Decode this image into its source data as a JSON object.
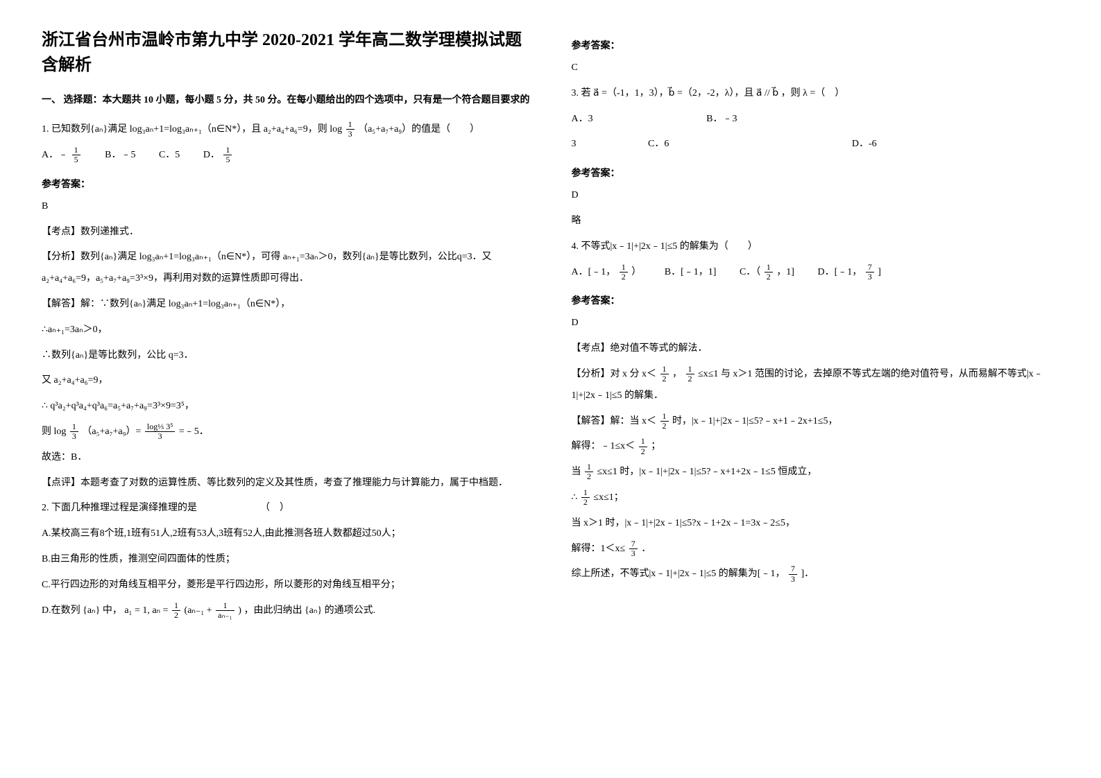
{
  "title": "浙江省台州市温岭市第九中学 2020-2021 学年高二数学理模拟试题含解析",
  "section1": "一、 选择题：本大题共 10 小题，每小题 5 分，共 50 分。在每小题给出的四个选项中，只有是一个符合题目要求的",
  "q1": {
    "stem_a": "1. 已知数列{aₙ}满足 log₃aₙ+1=log₃aₙ₊₁（n∈N*），且 a₂+a₄+a₆=9，则 log ",
    "stem_b": "（a₅+a₇+a₉）的值是（　　）",
    "optA_pre": "A．﹣",
    "optB": "B．﹣5",
    "optC": "C．5",
    "optD_pre": "D．",
    "ans_label": "参考答案：",
    "ans": "B",
    "p1": "【考点】数列递推式．",
    "p2": "【分析】数列{aₙ}满足 log₃aₙ+1=log₃aₙ₊₁（n∈N*），可得 aₙ₊₁=3aₙ＞0，数列{aₙ}是等比数列，公比q=3．又 a₂+a₄+a₆=9，a₅+a₇+a₉=3³×9，再利用对数的运算性质即可得出．",
    "p3": "【解答】解：∵数列{aₙ}满足 log₃aₙ+1=log₃aₙ₊₁（n∈N*），",
    "p4": "∴aₙ₊₁=3aₙ＞0，",
    "p5": "∴数列{aₙ}是等比数列，公比 q=3．",
    "p6": "又 a₂+a₄+a₆=9，",
    "p7_a": "∴ q³a₂+q³a₄+q³a₆",
    "p7_b": "=a₅+a₇+a₉=3³×9=3⁵，",
    "p8_a": "则 log ",
    "p8_b": "（a₅+a₇+a₉）= ",
    "p8_c": " =﹣5．",
    "p9": "故选：B．",
    "p10": "【点评】本题考查了对数的运算性质、等比数列的定义及其性质，考查了推理能力与计算能力，属于中档题．"
  },
  "q2": {
    "stem": "2. 下面几种推理过程是演绎推理的是　　　　　　　（　）",
    "optA": "A.某校高三有8个班,1班有51人,2班有53人,3班有52人,由此推测各班人数都超过50人；",
    "optB": "B.由三角形的性质，推测空间四面体的性质；",
    "optC": "C.平行四边形的对角线互相平分，菱形是平行四边形，所以菱形的对角线互相平分；",
    "optD_a": "D.在数列 {aₙ} 中，",
    "optD_b": "a₁ = 1, aₙ = ",
    "optD_c": "(aₙ₋₁ + ",
    "optD_d": ")",
    "optD_e": "，由此归纳出 {aₙ} 的通项公式.",
    "ans_label": "参考答案：",
    "ans": "C"
  },
  "q3": {
    "stem_a": "3. 若 a⃗ =（-1，1，3），b⃗ =（2，-2，λ），且 a⃗ // b⃗ ，则 λ =（　）",
    "optA": "A．3",
    "optB": "B．﹣3",
    "optC": "C．6",
    "optD": "D．-6",
    "ans_label": "参考答案：",
    "ans": "D",
    "note": "略"
  },
  "q4": {
    "stem": "4. 不等式|x﹣1|+|2x﹣1|≤5 的解集为（　　）",
    "optA_a": "A．[﹣1，",
    "optA_b": "）",
    "optB": "B．[﹣1，1]",
    "optC_a": "C．（",
    "optC_b": "，1]",
    "optD_a": "D．[﹣1，",
    "optD_b": "]",
    "ans_label": "参考答案：",
    "ans": "D",
    "p1": "【考点】绝对值不等式的解法．",
    "p2_a": "【分析】对 x 分 x＜",
    "p2_b": "，",
    "p2_c": "≤x≤1 与 x＞1 范围的讨论，去掉原不等式左端的绝对值符号，从而易解不等式|x﹣1|+|2x﹣1|≤5 的解集．",
    "p3_a": "【解答】解：当 x＜",
    "p3_b": "时，|x﹣1|+|2x﹣1|≤5?﹣x+1﹣2x+1≤5，",
    "p4_a": "解得：﹣1≤x＜",
    "p4_b": "；",
    "p5_a": "当",
    "p5_b": "≤x≤1 时，|x﹣1|+|2x﹣1|≤5?﹣x+1+2x﹣1≤5 恒成立，",
    "p6_a": "∴",
    "p6_b": "≤x≤1；",
    "p7": "当 x＞1 时，|x﹣1|+|2x﹣1|≤5?x﹣1+2x﹣1=3x﹣2≤5，",
    "p8_a": "解得：1＜x≤",
    "p8_b": "．",
    "p9_a": "综上所述，不等式|x﹣1|+|2x﹣1|≤5 的解集为[﹣1，",
    "p9_b": "]．"
  },
  "frac": {
    "one": "1",
    "two": "2",
    "three": "3",
    "five": "5",
    "seven": "7",
    "log35": "log⅓ 3⁵",
    "an1": "aₙ₋₁"
  }
}
